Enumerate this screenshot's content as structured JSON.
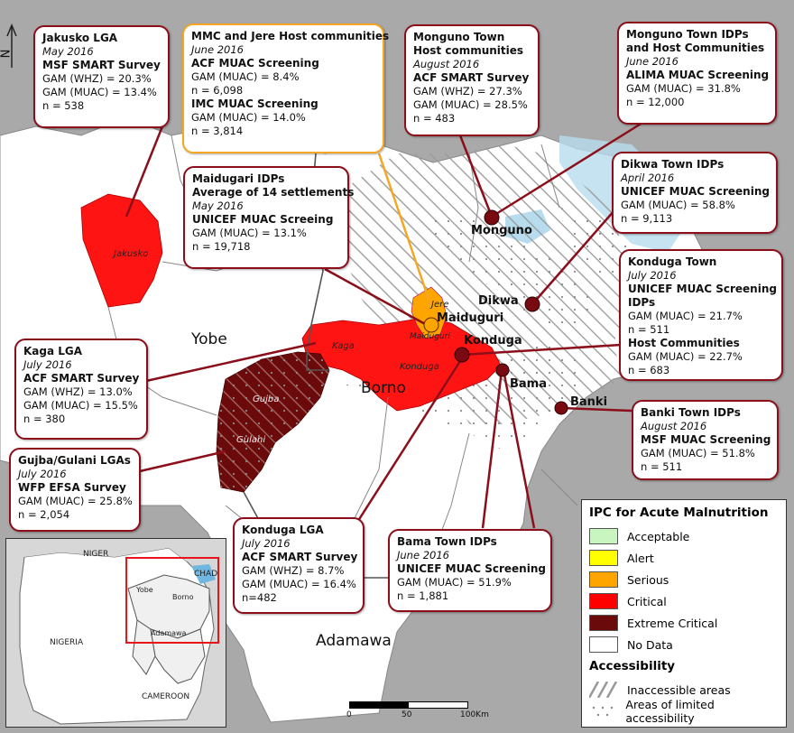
{
  "regions": {
    "yobe": "Yobe",
    "borno": "Borno",
    "adamawa": "Adamawa"
  },
  "towns": {
    "monguno": "Monguno",
    "dikwa": "Dikwa",
    "maiduguri": "Maiduguri",
    "konduga": "Konduga",
    "bama": "Bama",
    "banki": "Banki"
  },
  "lga_labels": {
    "jakusko": "Jakusko",
    "kaga": "Kaga",
    "gujba": "Gujba",
    "gulani": "Gulani",
    "jere": "Jere",
    "maiduguri": "Maiduguri",
    "konduga": "Konduga"
  },
  "north_arrow": "N",
  "callouts": {
    "jakusko": {
      "title": "Jakusko LGA",
      "date": "May 2016",
      "survey": "MSF SMART Survey",
      "l1": "GAM (WHZ) = 20.3%",
      "l2": "GAM (MUAC) = 13.4%",
      "l3": "n = 538"
    },
    "mmc": {
      "title": "MMC and Jere Host communities",
      "date": "June 2016",
      "survey1": "ACF MUAC Screening",
      "l1": "GAM (MUAC) = 8.4%",
      "l2": "n = 6,098",
      "survey2": "IMC MUAC Screening",
      "l3": "GAM (MUAC) = 14.0%",
      "l4": "n = 3,814"
    },
    "monguno_host": {
      "title1": "Monguno Town",
      "title2": "Host communities",
      "date": "August 2016",
      "survey": "ACF SMART Survey",
      "l1": "GAM (WHZ) = 27.3%",
      "l2": "GAM (MUAC) = 28.5%",
      "l3": "n = 483"
    },
    "monguno_idp": {
      "title1": "Monguno Town IDPs",
      "title2": "and Host Communities",
      "date": "June 2016",
      "survey": "ALIMA MUAC Screening",
      "l1": "GAM (MUAC) = 31.8%",
      "l2": "n = 12,000"
    },
    "maiduguri_idp": {
      "title1": "Maidugari IDPs",
      "title2": "Average of 14 settlements",
      "date": "May 2016",
      "survey": "UNICEF MUAC Screeing",
      "l1": "GAM (MUAC) = 13.1%",
      "l2": "n = 19,718"
    },
    "dikwa": {
      "title": "Dikwa Town IDPs",
      "date": "April 2016",
      "survey": "UNICEF MUAC Screening",
      "l1": "GAM (MUAC) = 58.8%",
      "l2": "n = 9,113"
    },
    "konduga_town": {
      "title": "Konduga Town",
      "date": "July 2016",
      "survey": "UNICEF MUAC Screening",
      "sub1": "IDPs",
      "l1": "GAM (MUAC) = 21.7%",
      "l2": "n = 511",
      "sub2": "Host Communities",
      "l3": "GAM (MUAC) = 22.7%",
      "l4": "n = 683"
    },
    "kaga": {
      "title": "Kaga LGA",
      "date": "July 2016",
      "survey": "ACF SMART Survey",
      "l1": "GAM (WHZ) = 13.0%",
      "l2": "GAM (MUAC) = 15.5%",
      "l3": "n = 380"
    },
    "banki": {
      "title": "Banki Town IDPs",
      "date": "August 2016",
      "survey": "MSF MUAC Screening",
      "l1": "GAM (MUAC) = 51.8%",
      "l2": "n = 511"
    },
    "gujba": {
      "title": "Gujba/Gulani LGAs",
      "date": "July 2016",
      "survey": "WFP EFSA Survey",
      "l1": "GAM (MUAC) = 25.8%",
      "l2": "n = 2,054"
    },
    "konduga_lga": {
      "title": "Konduga LGA",
      "date": "July 2016",
      "survey": "ACF SMART Survey",
      "l1": "GAM (WHZ) = 8.7%",
      "l2": "GAM (MUAC) = 16.4%",
      "l3": "n=482"
    },
    "bama": {
      "title": "Bama Town IDPs",
      "date": "June 2016",
      "survey": "UNICEF MUAC Screening",
      "l1": "GAM (MUAC) = 51.9%",
      "l2": "n = 1,881"
    }
  },
  "legend": {
    "title": "IPC for Acute Malnutrition",
    "items": [
      {
        "label": "Acceptable",
        "color": "#c8f5c0"
      },
      {
        "label": "Alert",
        "color": "#ffff00"
      },
      {
        "label": "Serious",
        "color": "#ffa500"
      },
      {
        "label": "Critical",
        "color": "#ff0000"
      },
      {
        "label": "Extreme Critical",
        "color": "#6b0a0a"
      },
      {
        "label": "No Data",
        "color": "#ffffff"
      }
    ],
    "access_title": "Accessibility",
    "inaccessible": "Inaccessible areas",
    "limited": "Areas of limited accessibility"
  },
  "inset": {
    "niger": "NIGER",
    "chad": "CHAD",
    "nigeria": "NIGERIA",
    "cameroon": "CAMEROON",
    "yobe": "Yobe",
    "borno": "Borno",
    "adamawa": "Adamawa"
  },
  "scale": {
    "t0": "0",
    "t1": "50",
    "t2": "100Km"
  }
}
